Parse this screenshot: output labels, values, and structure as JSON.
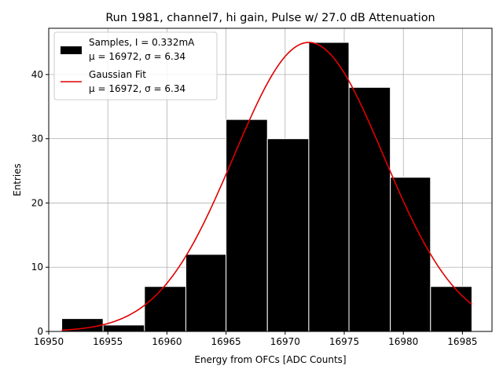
{
  "chart_data": {
    "type": "bar",
    "title": "Run 1981, channel7, hi gain, Pulse w/ 27.0 dB Attenuation",
    "xlabel": "Energy from OFCs [ADC Counts]",
    "ylabel": "Entries",
    "xlim": [
      16950,
      16987.5
    ],
    "ylim": [
      0,
      47.2
    ],
    "xticks": [
      16950,
      16955,
      16960,
      16965,
      16970,
      16975,
      16980,
      16985
    ],
    "yticks": [
      0,
      10,
      20,
      30,
      40
    ],
    "grid": true,
    "legend_position": "upper-left",
    "bins": [
      {
        "left": 16951.1,
        "right": 16954.6,
        "count": 2
      },
      {
        "left": 16954.6,
        "right": 16958.1,
        "count": 1
      },
      {
        "left": 16958.1,
        "right": 16961.6,
        "count": 7
      },
      {
        "left": 16961.6,
        "right": 16965.0,
        "count": 12
      },
      {
        "left": 16965.0,
        "right": 16968.5,
        "count": 33
      },
      {
        "left": 16968.5,
        "right": 16972.0,
        "count": 30
      },
      {
        "left": 16972.0,
        "right": 16975.4,
        "count": 45
      },
      {
        "left": 16975.4,
        "right": 16978.9,
        "count": 38
      },
      {
        "left": 16978.9,
        "right": 16982.3,
        "count": 24
      },
      {
        "left": 16982.3,
        "right": 16985.8,
        "count": 7
      }
    ],
    "series": [
      {
        "name": "Samples, I = 0.332mA",
        "name2": "μ = 16972, σ = 6.34",
        "kind": "histogram",
        "color": "#000000"
      },
      {
        "name": "Gaussian Fit",
        "name2": "μ = 16972, σ = 6.34",
        "kind": "line",
        "color": "#e00000"
      }
    ],
    "fit": {
      "mu": 16972,
      "sigma": 6.34,
      "amplitude": 45,
      "x_range": [
        16951.1,
        16985.8
      ]
    }
  }
}
